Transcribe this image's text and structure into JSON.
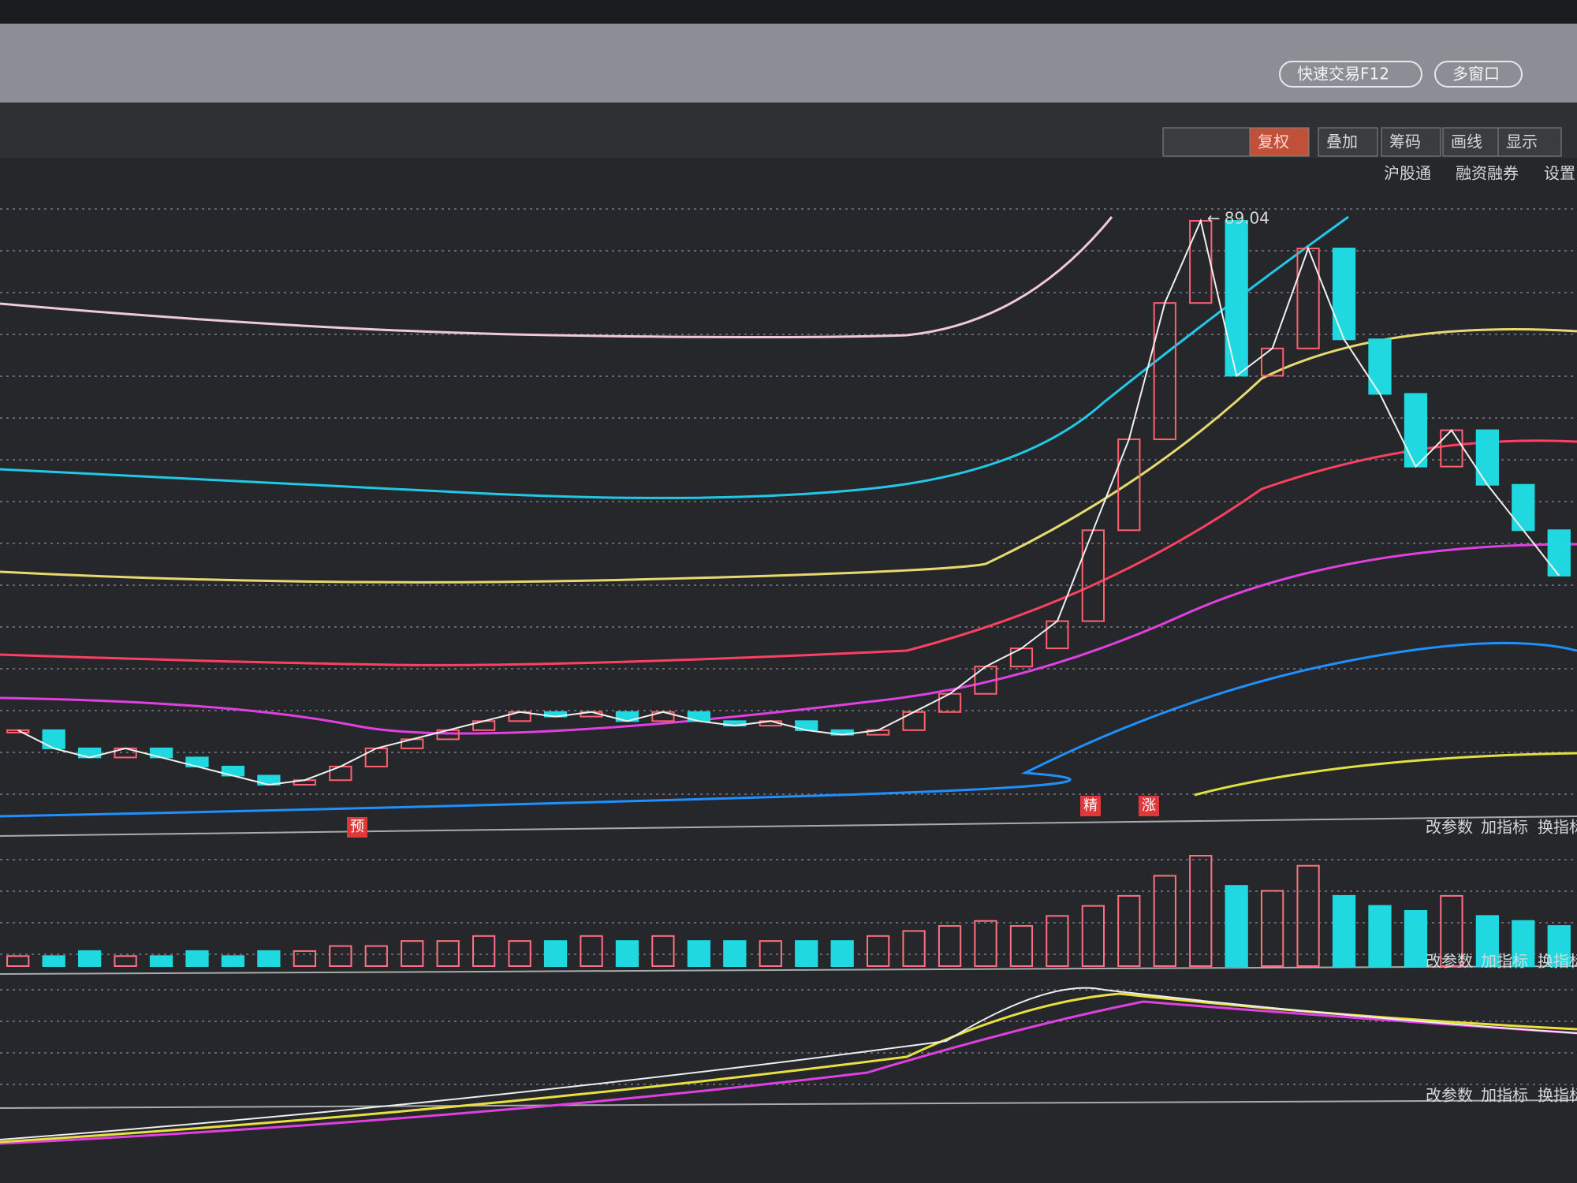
{
  "top_buttons": [
    "快速交易F12",
    "多窗口"
  ],
  "toolbar": [
    "复权",
    "叠加",
    "筹码",
    "画线",
    "显示"
  ],
  "links": [
    "沪股通",
    "融资融券",
    "设置"
  ],
  "main_chart": {
    "peak_label": "89.04",
    "markers": [
      "预",
      "精",
      "涨"
    ],
    "price": [
      33,
      31,
      30,
      31,
      30,
      29,
      28,
      27,
      27.5,
      29,
      31,
      32,
      33,
      34,
      35,
      34.5,
      35,
      34,
      35,
      34,
      33.5,
      34,
      33,
      32.5,
      33,
      35,
      37,
      40,
      42,
      45,
      55,
      65,
      80,
      89.04,
      72,
      75,
      86,
      76,
      70,
      62,
      66,
      60,
      55,
      50
    ]
  },
  "volume": [
    2,
    2,
    3,
    2,
    2,
    3,
    2,
    3,
    3,
    4,
    4,
    5,
    5,
    6,
    5,
    5,
    6,
    5,
    6,
    5,
    5,
    5,
    5,
    5,
    6,
    7,
    8,
    9,
    8,
    10,
    12,
    14,
    18,
    22,
    16,
    15,
    20,
    14,
    12,
    11,
    14,
    10,
    9,
    8
  ],
  "panels": [
    {
      "actions": [
        "改参数",
        "加指标",
        "换指标"
      ]
    },
    {
      "actions": [
        "改参数",
        "加指标",
        "换指标"
      ]
    },
    {
      "actions": [
        "改参数",
        "加指标",
        "换指标"
      ]
    }
  ]
}
